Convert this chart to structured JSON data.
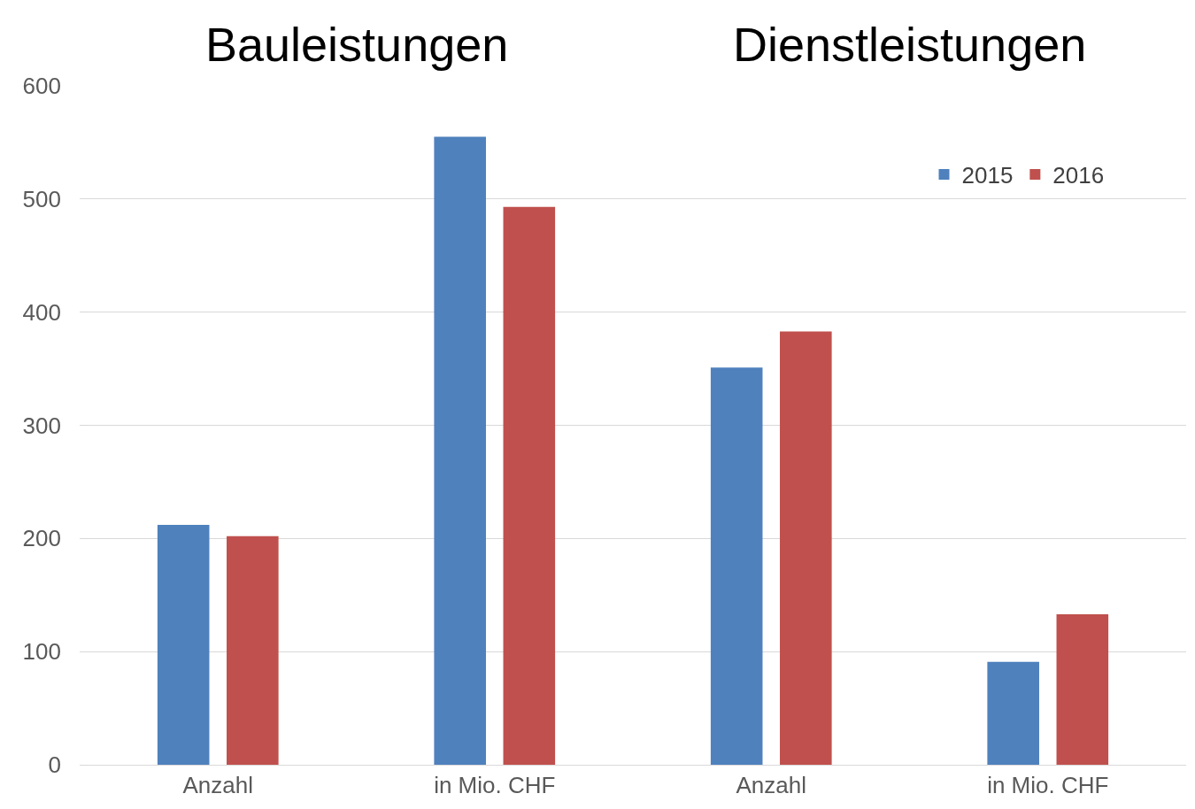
{
  "chart_data": {
    "type": "bar",
    "categories": [
      "Anzahl",
      "in Mio. CHF",
      "Anzahl",
      "in Mio. CHF"
    ],
    "series": [
      {
        "name": "2015",
        "color": "#4f81bd",
        "values": [
          212,
          555,
          351,
          91
        ]
      },
      {
        "name": "2016",
        "color": "#c0504d",
        "values": [
          202,
          493,
          383,
          133
        ]
      }
    ],
    "annotations": [
      "Bauleistungen",
      "Dienstleistungen"
    ],
    "ylim": [
      0,
      600
    ],
    "yticks": [
      0,
      100,
      200,
      300,
      400,
      500,
      600
    ],
    "grid": "y",
    "legend": "top right"
  }
}
